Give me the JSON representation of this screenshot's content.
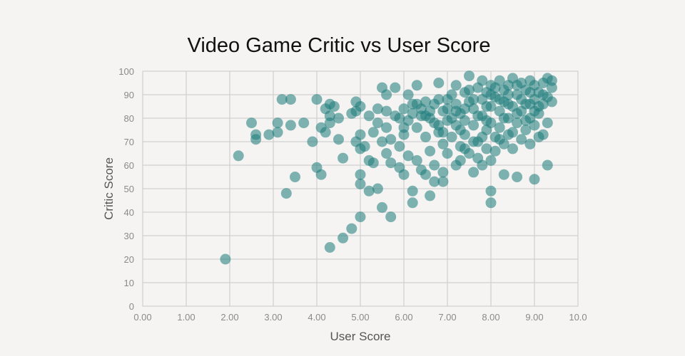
{
  "chart_data": {
    "type": "scatter",
    "title": "Video Game Critic vs User Score",
    "xlabel": "User Score",
    "ylabel": "Critic Score",
    "xlim": [
      0,
      10
    ],
    "ylim": [
      0,
      100
    ],
    "x_ticks": [
      "0.00",
      "1.00",
      "2.00",
      "3.00",
      "4.00",
      "5.00",
      "6.00",
      "7.00",
      "8.00",
      "9.00",
      "10.0"
    ],
    "y_ticks": [
      "0",
      "10",
      "20",
      "30",
      "40",
      "50",
      "60",
      "70",
      "80",
      "90",
      "100"
    ],
    "grid": true,
    "legend": "none",
    "point_color": "#1a7a7a",
    "point_opacity": 0.55,
    "series": [
      {
        "points": [
          [
            1.9,
            20
          ],
          [
            2.2,
            64
          ],
          [
            2.5,
            78
          ],
          [
            2.6,
            73
          ],
          [
            2.6,
            71
          ],
          [
            2.9,
            73
          ],
          [
            3.1,
            78
          ],
          [
            3.1,
            74
          ],
          [
            3.2,
            88
          ],
          [
            3.4,
            88
          ],
          [
            3.3,
            48
          ],
          [
            3.4,
            77
          ],
          [
            3.5,
            55
          ],
          [
            3.7,
            78
          ],
          [
            3.9,
            70
          ],
          [
            4.0,
            88
          ],
          [
            4.0,
            59
          ],
          [
            4.1,
            56
          ],
          [
            4.1,
            76
          ],
          [
            4.2,
            84
          ],
          [
            4.2,
            74
          ],
          [
            4.3,
            86
          ],
          [
            4.3,
            81
          ],
          [
            4.3,
            78
          ],
          [
            4.4,
            85
          ],
          [
            4.3,
            25
          ],
          [
            4.5,
            80
          ],
          [
            4.5,
            71
          ],
          [
            4.6,
            63
          ],
          [
            4.6,
            29
          ],
          [
            4.8,
            33
          ],
          [
            4.8,
            82
          ],
          [
            4.9,
            87
          ],
          [
            4.9,
            83
          ],
          [
            4.9,
            70
          ],
          [
            5.0,
            85
          ],
          [
            5.0,
            73
          ],
          [
            5.0,
            67
          ],
          [
            5.0,
            56
          ],
          [
            5.0,
            52
          ],
          [
            5.0,
            38
          ],
          [
            5.1,
            68
          ],
          [
            5.2,
            62
          ],
          [
            5.2,
            49
          ],
          [
            5.2,
            81
          ],
          [
            5.3,
            61
          ],
          [
            5.3,
            74
          ],
          [
            5.4,
            78
          ],
          [
            5.4,
            50
          ],
          [
            5.5,
            93
          ],
          [
            5.5,
            70
          ],
          [
            5.5,
            42
          ],
          [
            5.6,
            90
          ],
          [
            5.6,
            76
          ],
          [
            5.6,
            65
          ],
          [
            5.7,
            71
          ],
          [
            5.7,
            61
          ],
          [
            5.7,
            38
          ],
          [
            5.8,
            93
          ],
          [
            5.8,
            81
          ],
          [
            5.9,
            68
          ],
          [
            5.9,
            59
          ],
          [
            6.0,
            73
          ],
          [
            6.0,
            56
          ],
          [
            6.0,
            84
          ],
          [
            6.1,
            90
          ],
          [
            6.1,
            79
          ],
          [
            6.1,
            64
          ],
          [
            6.2,
            49
          ],
          [
            6.2,
            44
          ],
          [
            6.2,
            86
          ],
          [
            6.3,
            94
          ],
          [
            6.3,
            76
          ],
          [
            6.3,
            62
          ],
          [
            6.4,
            58
          ],
          [
            6.4,
            81
          ],
          [
            6.5,
            87
          ],
          [
            6.5,
            72
          ],
          [
            6.5,
            56
          ],
          [
            6.6,
            47
          ],
          [
            6.6,
            83
          ],
          [
            6.6,
            66
          ],
          [
            6.7,
            78
          ],
          [
            6.7,
            60
          ],
          [
            6.7,
            53
          ],
          [
            6.8,
            95
          ],
          [
            6.8,
            88
          ],
          [
            6.8,
            74
          ],
          [
            6.9,
            69
          ],
          [
            6.9,
            57
          ],
          [
            6.9,
            53
          ],
          [
            7.0,
            84
          ],
          [
            7.0,
            79
          ],
          [
            7.0,
            65
          ],
          [
            7.1,
            90
          ],
          [
            7.1,
            72
          ],
          [
            7.2,
            94
          ],
          [
            7.2,
            86
          ],
          [
            7.2,
            77
          ],
          [
            7.2,
            60
          ],
          [
            7.3,
            82
          ],
          [
            7.3,
            68
          ],
          [
            7.3,
            62
          ],
          [
            7.4,
            91
          ],
          [
            7.4,
            79
          ],
          [
            7.4,
            73
          ],
          [
            7.5,
            98
          ],
          [
            7.5,
            87
          ],
          [
            7.5,
            65
          ],
          [
            7.6,
            84
          ],
          [
            7.6,
            77
          ],
          [
            7.6,
            57
          ],
          [
            7.7,
            93
          ],
          [
            7.7,
            70
          ],
          [
            7.7,
            63
          ],
          [
            7.8,
            96
          ],
          [
            7.8,
            88
          ],
          [
            7.8,
            81
          ],
          [
            7.8,
            60
          ],
          [
            7.9,
            91
          ],
          [
            7.9,
            75
          ],
          [
            7.9,
            67
          ],
          [
            8.0,
            94
          ],
          [
            8.0,
            85
          ],
          [
            8.0,
            78
          ],
          [
            8.0,
            62
          ],
          [
            8.0,
            49
          ],
          [
            8.0,
            44
          ],
          [
            8.1,
            89
          ],
          [
            8.1,
            72
          ],
          [
            8.1,
            66
          ],
          [
            8.2,
            96
          ],
          [
            8.2,
            83
          ],
          [
            8.2,
            76
          ],
          [
            8.3,
            92
          ],
          [
            8.3,
            87
          ],
          [
            8.3,
            69
          ],
          [
            8.3,
            56
          ],
          [
            8.4,
            94
          ],
          [
            8.4,
            80
          ],
          [
            8.4,
            73
          ],
          [
            8.5,
            97
          ],
          [
            8.5,
            85
          ],
          [
            8.5,
            67
          ],
          [
            8.6,
            90
          ],
          [
            8.6,
            78
          ],
          [
            8.6,
            55
          ],
          [
            8.7,
            95
          ],
          [
            8.7,
            83
          ],
          [
            8.7,
            71
          ],
          [
            8.8,
            92
          ],
          [
            8.8,
            86
          ],
          [
            8.8,
            75
          ],
          [
            8.9,
            96
          ],
          [
            8.9,
            80
          ],
          [
            8.9,
            69
          ],
          [
            9.0,
            94
          ],
          [
            9.0,
            88
          ],
          [
            9.0,
            77
          ],
          [
            9.0,
            54
          ],
          [
            9.1,
            91
          ],
          [
            9.1,
            82
          ],
          [
            9.1,
            72
          ],
          [
            9.2,
            95
          ],
          [
            9.2,
            86
          ],
          [
            9.2,
            73
          ],
          [
            9.3,
            97
          ],
          [
            9.3,
            89
          ],
          [
            9.3,
            78
          ],
          [
            9.3,
            60
          ],
          [
            9.4,
            93
          ],
          [
            9.4,
            87
          ],
          [
            9.4,
            96
          ],
          [
            9.2,
            90
          ],
          [
            8.9,
            91
          ],
          [
            8.6,
            94
          ],
          [
            8.4,
            90
          ],
          [
            8.2,
            88
          ],
          [
            7.9,
            85
          ],
          [
            7.6,
            88
          ],
          [
            7.4,
            84
          ],
          [
            7.1,
            80
          ],
          [
            6.9,
            83
          ],
          [
            6.6,
            80
          ],
          [
            6.4,
            84
          ],
          [
            6.2,
            82
          ],
          [
            5.9,
            80
          ],
          [
            5.6,
            83
          ],
          [
            5.4,
            84
          ],
          [
            6.0,
            76
          ],
          [
            6.7,
            86
          ],
          [
            7.3,
            75
          ],
          [
            7.8,
            72
          ],
          [
            8.5,
            74
          ],
          [
            8.8,
            79
          ],
          [
            9.1,
            85
          ],
          [
            8.0,
            90
          ],
          [
            8.3,
            80
          ],
          [
            7.7,
            81
          ],
          [
            7.5,
            92
          ],
          [
            6.8,
            77
          ],
          [
            6.5,
            81
          ],
          [
            6.3,
            86
          ],
          [
            7.0,
            88
          ],
          [
            7.2,
            83
          ],
          [
            8.7,
            88
          ],
          [
            8.1,
            93
          ],
          [
            8.4,
            86
          ],
          [
            7.9,
            79
          ],
          [
            7.6,
            70
          ],
          [
            8.6,
            82
          ],
          [
            9.0,
            83
          ],
          [
            8.9,
            86
          ],
          [
            8.2,
            71
          ],
          [
            7.4,
            67
          ],
          [
            6.9,
            74
          ]
        ]
      }
    ]
  }
}
